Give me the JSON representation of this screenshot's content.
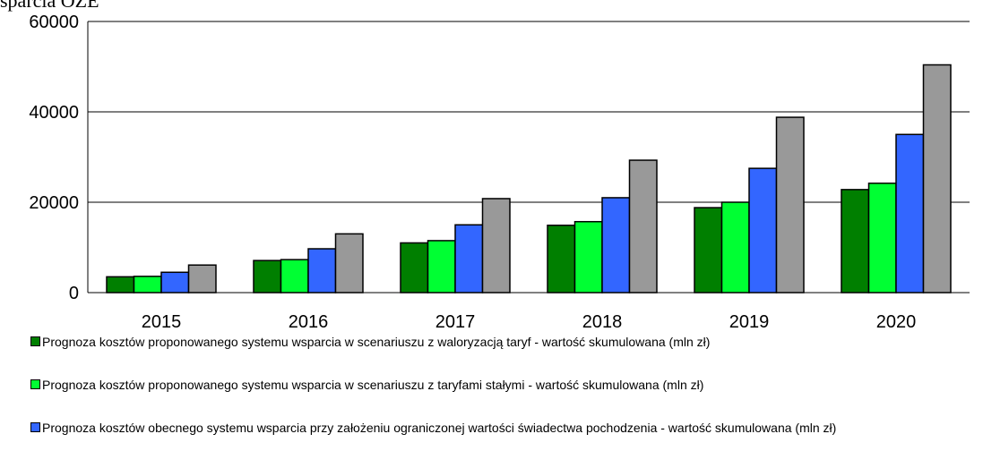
{
  "chart_data": {
    "type": "bar",
    "title": "sparcia OZE",
    "categories": [
      "2015",
      "2016",
      "2017",
      "2018",
      "2019",
      "2020"
    ],
    "series": [
      {
        "name": "Prognoza kosztów proponowanego systemu wsparcia w scenariuszu z waloryzacją taryf - wartość skumulowana (mln zł)",
        "color": "#007f00",
        "values": [
          3500,
          7100,
          11000,
          14900,
          18800,
          22800
        ]
      },
      {
        "name": "Prognoza kosztów proponowanego systemu wsparcia w scenariuszu z taryfami stałymi - wartość skumulowana (mln zł)",
        "color": "#00ff33",
        "values": [
          3600,
          7300,
          11500,
          15700,
          20000,
          24200
        ]
      },
      {
        "name": "Prognoza kosztów obecnego systemu wsparcia przy założeniu ograniczonej wartości świadectwa pochodzenia - wartość skumulowana (mln zł)",
        "color": "#3366ff",
        "values": [
          4500,
          9700,
          15000,
          21000,
          27500,
          35000
        ]
      },
      {
        "color": "#999999",
        "values": [
          6100,
          13000,
          20800,
          29300,
          38800,
          50400
        ]
      }
    ],
    "ylim": [
      0,
      60000
    ],
    "yticks": [
      0,
      20000,
      40000,
      60000
    ],
    "grid": true
  }
}
